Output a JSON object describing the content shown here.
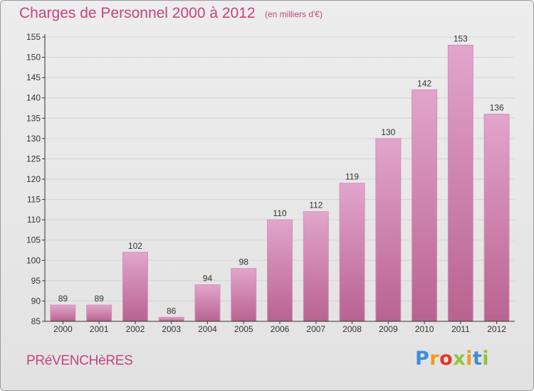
{
  "header": {
    "title": "Charges de Personnel 2000 à 2012",
    "subtitle": "(en milliers d'€)"
  },
  "footer": {
    "commune": "PRéVENCHèRES",
    "logo_letters": [
      "P",
      "r",
      "o",
      "x",
      "i",
      "t",
      "i"
    ]
  },
  "colors": {
    "bar_light": "#e2a5cb",
    "bar_dark": "#b8638f",
    "title": "#c4457c",
    "axis": "#333333",
    "grid": "#d4d4d4"
  },
  "chart_data": {
    "type": "bar",
    "title": "Charges de Personnel 2000 à 2012",
    "subtitle": "(en milliers d'€)",
    "xlabel": "",
    "ylabel": "",
    "categories": [
      "2000",
      "2001",
      "2002",
      "2003",
      "2004",
      "2005",
      "2006",
      "2007",
      "2008",
      "2009",
      "2010",
      "2011",
      "2012"
    ],
    "values": [
      89,
      89,
      102,
      86,
      94,
      98,
      110,
      112,
      119,
      130,
      142,
      153,
      136
    ],
    "ylim": [
      85,
      155
    ],
    "yticks": [
      85,
      90,
      95,
      100,
      105,
      110,
      115,
      120,
      125,
      130,
      135,
      140,
      145,
      150,
      155
    ],
    "grid": true,
    "legend": "none"
  }
}
